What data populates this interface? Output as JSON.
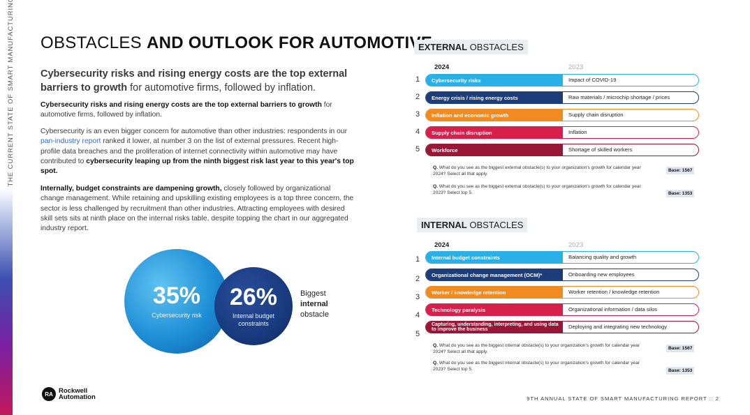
{
  "side_text": ":: THE CURRENT STATE OF SMART MANUFACTURING ::",
  "title": {
    "light": "OBSTACLES ",
    "bold": "AND OUTLOOK FOR AUTOMOTIVE"
  },
  "lead": {
    "bold": "Cybersecurity risks and rising energy costs are the top external barriers to growth",
    "rest": " for automotive firms, followed by inflation."
  },
  "p1": {
    "bold": "Cybersecurity risks and rising energy costs are the top external barriers to growth",
    "rest": " for automotive firms, followed by inflation."
  },
  "p2": {
    "a": "Cybersecurity is an even bigger concern for automotive than other industries: respondents in our ",
    "link": "pan-industry report",
    "b": " ranked it lower, at number 3 on the list of external pressures. Recent high-profile data breaches and the proliferation of internet connectivity within automotive may have contributed to ",
    "bold": "cybersecurity leaping up from the ninth biggest risk last year to this year's top spot."
  },
  "p3": {
    "bold": "Internally, budget constraints are dampening growth,",
    "rest": " closely followed by organizational change management. While retaining and upskilling existing employees is a top three concern, the sector is less challenged by recruitment than other industries. Attracting employees with desired skill sets sits at ninth place on the internal risks table, despite topping the chart in our aggregated industry report."
  },
  "stat1": {
    "value": "35%",
    "label": "Cybersecurity risk"
  },
  "stat2": {
    "value": "26%",
    "label": "Internal budget constraints"
  },
  "biggest": {
    "line1": "Biggest",
    "line2": "internal",
    "line3": "obstacle"
  },
  "external": {
    "head_bold": "EXTERNAL",
    "head_light": " OBSTACLES",
    "year_current": "2024",
    "year_prev": "2023",
    "ranks": [
      "1",
      "2",
      "3",
      "4",
      "5"
    ],
    "rows": [
      {
        "current": "Cybersecurity risks",
        "prev": "Impact of COVID-19",
        "color": "#29b0e8"
      },
      {
        "current": "Energy crisis / rising energy costs",
        "prev": "Raw materials / microchip shortage / prices",
        "color": "#1d3c7a"
      },
      {
        "current": "Inflation and economic growth",
        "prev": "Supply chain disruption",
        "color": "#f28a22"
      },
      {
        "current": "Supply chain disruption",
        "prev": "Inflation",
        "color": "#d61f4b"
      },
      {
        "current": "Workforce",
        "prev": "Shortage of skilled workers",
        "color": "#9a1636"
      }
    ],
    "note1_q": "Q.",
    "note1": " What do you see as the biggest external obstacle(s) to your organization's growth for calendar year 2024? Select all that apply.",
    "base1": "Base: 1567",
    "note2_q": "Q.",
    "note2": " What do you see as the biggest external obstacle(s) to your organization's growth for calendar year 2023? Select top 5.",
    "base2": "Base: 1353"
  },
  "internal": {
    "head_bold": "INTERNAL",
    "head_light": " OBSTACLES",
    "year_current": "2024",
    "year_prev": "2023",
    "ranks": [
      "1",
      "2",
      "3",
      "4",
      "5"
    ],
    "rows": [
      {
        "current": "Internal budget constraints",
        "prev": "Balancing quality and growth",
        "color": "#29b0e8"
      },
      {
        "current": "Organizational change management (OCM)*",
        "prev": "Onboarding new employees",
        "color": "#1d3c7a"
      },
      {
        "current": "Worker / knowledge retention",
        "prev": "Worker retention / knowledge retention",
        "color": "#f28a22"
      },
      {
        "current": "Technology paralysis",
        "prev": "Organizational information / data silos",
        "color": "#d61f4b"
      },
      {
        "current": "Capturing, understanding, interpreting, and using data to improve the business",
        "prev": "Deploying and integrating new technology",
        "color": "#9a1636"
      }
    ],
    "note1_q": "Q.",
    "note1": " What do you see as the biggest internal obstacle(s) to your organization's growth for calendar year 2024? Select all that apply.",
    "base1": "Base: 1567",
    "note2_q": "Q.",
    "note2": " What do you see as the biggest internal obstacle(s) to your organization's growth for calendar year 2023? Select top 5.",
    "base2": "Base: 1353"
  },
  "logo": {
    "mark": "RA",
    "line1": "Rockwell",
    "line2": "Automation"
  },
  "footer": "9TH ANNUAL STATE OF SMART MANUFACTURING REPORT :: 2"
}
